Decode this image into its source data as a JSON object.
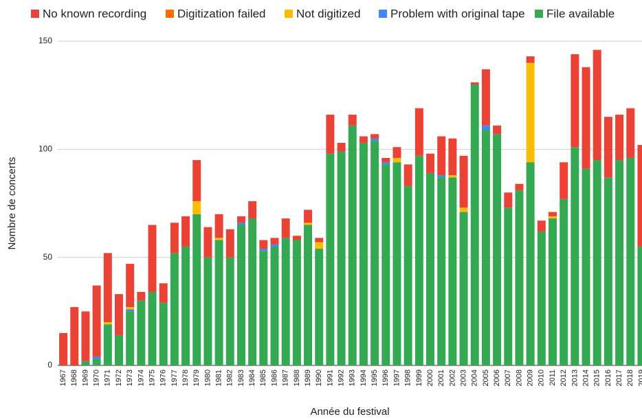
{
  "chart_data": {
    "type": "stacked_bar",
    "x_label": "Année du festival",
    "y_label": "Nombre de concerts",
    "categories": [
      "1967",
      "1968",
      "1969",
      "1970",
      "1971",
      "1972",
      "1973",
      "1974",
      "1975",
      "1976",
      "1977",
      "1978",
      "1979",
      "1980",
      "1981",
      "1982",
      "1983",
      "1984",
      "1985",
      "1986",
      "1987",
      "1988",
      "1989",
      "1990",
      "1991",
      "1992",
      "1993",
      "1994",
      "1995",
      "1996",
      "1997",
      "1998",
      "1999",
      "2000",
      "2001",
      "2002",
      "2003",
      "2004",
      "2005",
      "2006",
      "2007",
      "2008",
      "2009",
      "2010",
      "2011",
      "2012",
      "2013",
      "2014",
      "2015",
      "2016",
      "2017",
      "2018",
      "2019"
    ],
    "series": [
      {
        "name": "No known recording",
        "color": "#ea4335",
        "values": [
          15,
          27,
          23,
          33,
          32,
          19,
          20,
          4,
          31,
          9,
          14,
          14,
          19,
          14,
          11,
          13,
          3,
          8,
          4,
          3,
          9,
          2,
          6,
          2,
          18,
          4,
          5,
          3,
          2,
          2,
          5,
          10,
          22,
          9,
          18,
          17,
          24,
          1,
          26,
          4,
          7,
          3,
          3,
          5,
          2,
          17,
          43,
          47,
          51,
          28,
          21,
          23,
          47
        ]
      },
      {
        "name": "Digitization failed",
        "color": "#ff6d01",
        "values": [
          0,
          0,
          0,
          0,
          0,
          0,
          0,
          0,
          0,
          0,
          0,
          0,
          0,
          0,
          0,
          0,
          0,
          0,
          0,
          0,
          0,
          0,
          0,
          0,
          0,
          0,
          0,
          0,
          0,
          0,
          0,
          0,
          0,
          0,
          0,
          0,
          0,
          0,
          0,
          0,
          0,
          0,
          0,
          0,
          0,
          0,
          0,
          0,
          0,
          0,
          0,
          0,
          0
        ]
      },
      {
        "name": "Not digitized",
        "color": "#fbbc04",
        "values": [
          0,
          0,
          0,
          0,
          1,
          0,
          1,
          0,
          0,
          0,
          0,
          0,
          6,
          0,
          1,
          0,
          0,
          0,
          0,
          0,
          0,
          0,
          1,
          3,
          0,
          0,
          0,
          0,
          0,
          0,
          2,
          0,
          0,
          0,
          0,
          1,
          2,
          0,
          0,
          0,
          0,
          0,
          46,
          0,
          1,
          0,
          0,
          0,
          0,
          0,
          0,
          0,
          0
        ]
      },
      {
        "name": "Problem with original tape",
        "color": "#4285f4",
        "values": [
          0,
          0,
          0,
          1,
          0,
          0,
          1,
          0,
          0,
          0,
          0,
          0,
          0,
          0,
          0,
          0,
          1,
          0,
          1,
          1,
          0,
          0,
          0,
          0,
          0,
          0,
          0,
          0,
          1,
          1,
          0,
          0,
          0,
          0,
          1,
          0,
          0,
          0,
          2,
          0,
          0,
          0,
          0,
          0,
          0,
          0,
          0,
          0,
          0,
          0,
          0,
          0,
          0
        ]
      },
      {
        "name": "File available",
        "color": "#34a853",
        "values": [
          0,
          0,
          2,
          3,
          19,
          14,
          25,
          30,
          34,
          29,
          52,
          55,
          70,
          50,
          58,
          50,
          65,
          68,
          53,
          55,
          59,
          58,
          65,
          54,
          98,
          99,
          111,
          103,
          104,
          93,
          94,
          83,
          97,
          89,
          87,
          87,
          71,
          130,
          109,
          107,
          73,
          81,
          94,
          62,
          68,
          77,
          101,
          91,
          95,
          87,
          95,
          96,
          55
        ]
      }
    ],
    "ylim": [
      0,
      150
    ],
    "yticks": [
      0,
      50,
      100,
      150
    ],
    "grid": true
  }
}
